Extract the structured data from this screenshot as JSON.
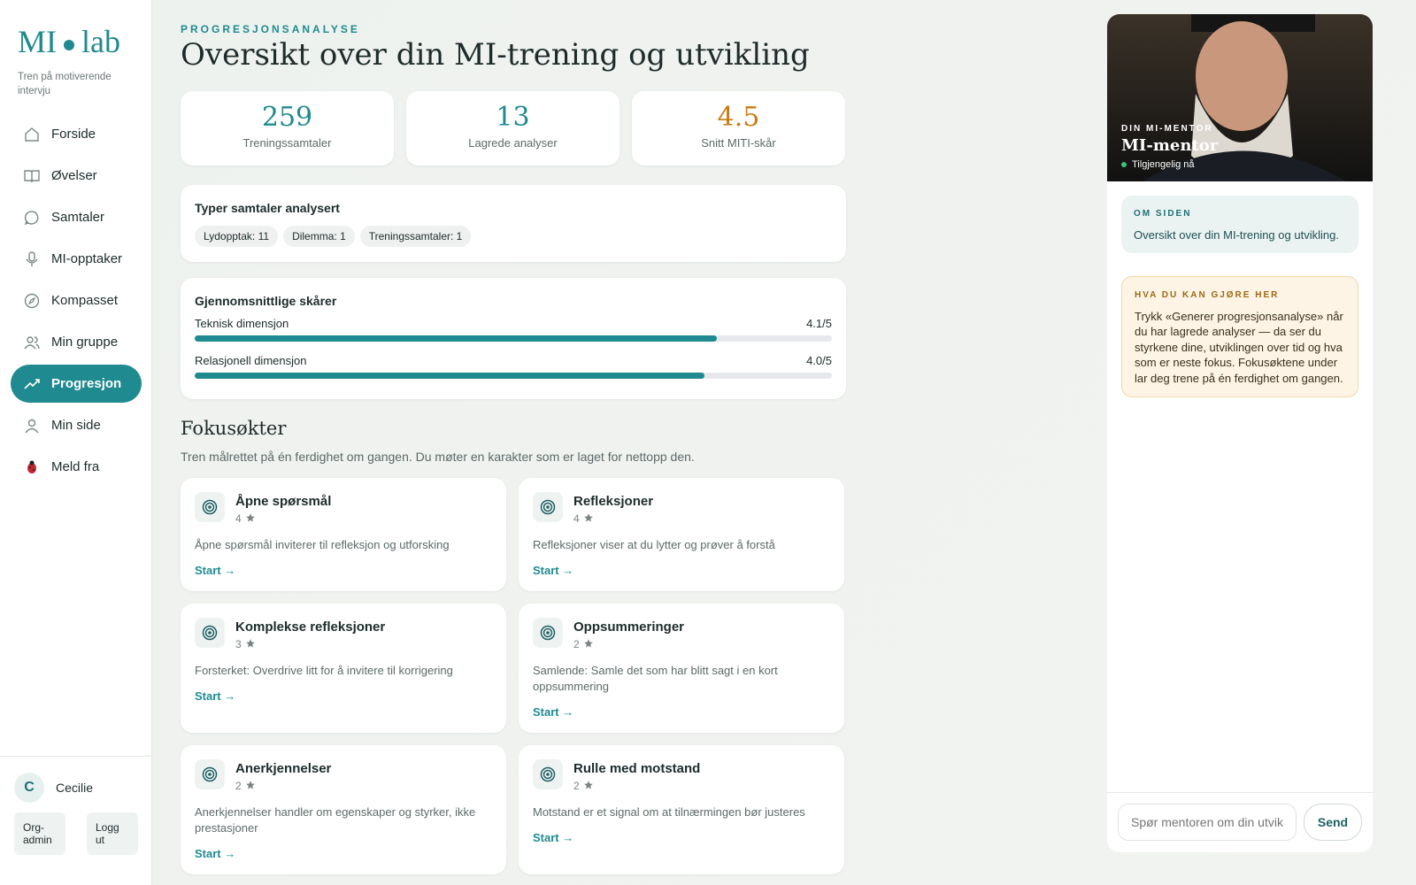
{
  "brand": {
    "logo_left": "MI",
    "logo_right": "lab",
    "tagline": "Tren på motiverende intervju"
  },
  "nav": [
    {
      "label": "Forside",
      "active": false
    },
    {
      "label": "Øvelser",
      "active": false
    },
    {
      "label": "Samtaler",
      "active": false
    },
    {
      "label": "MI-opptaker",
      "active": false
    },
    {
      "label": "Kompasset",
      "active": false
    },
    {
      "label": "Min gruppe",
      "active": false
    },
    {
      "label": "Progresjon",
      "active": true
    },
    {
      "label": "Min side",
      "active": false
    },
    {
      "label": "Meld fra",
      "active": false
    }
  ],
  "user": {
    "initial": "C",
    "name": "Cecilie",
    "buttons": [
      "Org-admin",
      "Logg ut"
    ]
  },
  "header": {
    "eyebrow": "PROGRESJONSANALYSE",
    "title": "Oversikt over din MI-trening og utvikling"
  },
  "stats": [
    {
      "value": 259,
      "label": "Treningssamtaler",
      "color": "#1f8a8f"
    },
    {
      "value": 13,
      "label": "Lagrede analyser",
      "color": "#1f8a8f"
    },
    {
      "value": 4.5,
      "label": "Snitt MITI-skår",
      "color": "#c97a12"
    }
  ],
  "types": {
    "title": "Typer samtaler analysert",
    "chips": [
      "Lydopptak: 11",
      "Dilemma: 1",
      "Treningssamtaler: 1"
    ]
  },
  "scores": {
    "title": "Gjennomsnittlige skårer",
    "items": [
      {
        "name": "Teknisk dimensjon",
        "value": 4.1,
        "max": 5,
        "label": "4.1/5"
      },
      {
        "name": "Relasjonell dimensjon",
        "value": 4.0,
        "max": 5,
        "label": "4.0/5"
      }
    ]
  },
  "focus": {
    "title": "Fokusøkter",
    "subtitle": "Tren målrettet på én ferdighet om gangen. Du møter en karakter som er laget for nettopp den.",
    "action": "Start →",
    "cards": [
      {
        "title": "Åpne spørsmål",
        "rating": 4,
        "description": "Åpne spørsmål inviterer til refleksjon og utforsking"
      },
      {
        "title": "Refleksjoner",
        "rating": 4,
        "description": "Refleksjoner viser at du lytter og prøver å forstå"
      },
      {
        "title": "Komplekse refleksjoner",
        "rating": 3,
        "description": "Forsterket: Overdrive litt for å invitere til korrigering"
      },
      {
        "title": "Oppsummeringer",
        "rating": 2,
        "description": "Samlende: Samle det som har blitt sagt i en kort oppsummering"
      },
      {
        "title": "Anerkjennelser",
        "rating": 2,
        "description": "Anerkjennelser handler om egenskaper og styrker, ikke prestasjoner"
      },
      {
        "title": "Rulle med motstand",
        "rating": 2,
        "description": "Motstand er et signal om at tilnærmingen bør justeres"
      }
    ]
  },
  "mentor": {
    "eyebrow": "DIN MI-MENTOR",
    "name": "MI-mentor",
    "status": "Tilgjengelig nå",
    "about_title": "OM SIDEN",
    "about_text": "Oversikt over din MI-trening og utvikling.",
    "tips_title": "HVA DU KAN GJØRE HER",
    "tips_text": "Trykk «Generer progresjonsanalyse» når du har lagrede analyser — da ser du styrkene dine, utviklingen over tid og hva som er neste fokus. Fokusøktene under lar deg trene på én ferdighet om gangen.",
    "input_placeholder": "Spør mentoren om din utvikling",
    "send": "Send"
  }
}
